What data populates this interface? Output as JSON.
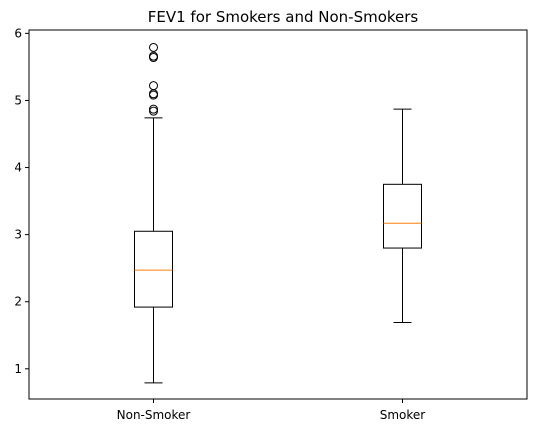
{
  "chart_data": {
    "type": "boxplot",
    "title": "FEV1 for Smokers and Non-Smokers",
    "xlabel": "",
    "ylabel": "",
    "ylim": [
      0.55,
      6.05
    ],
    "yticks": [
      1,
      2,
      3,
      4,
      5,
      6
    ],
    "categories": [
      "Non-Smoker",
      "Smoker"
    ],
    "boxes": [
      {
        "category": "Non-Smoker",
        "whisker_low": 0.79,
        "q1": 1.92,
        "median": 2.47,
        "q3": 3.05,
        "whisker_high": 4.74,
        "outliers": [
          4.84,
          4.87,
          5.08,
          5.1,
          5.22,
          5.64,
          5.66,
          5.79
        ]
      },
      {
        "category": "Smoker",
        "whisker_low": 1.69,
        "q1": 2.8,
        "median": 3.17,
        "q3": 3.75,
        "whisker_high": 4.87,
        "outliers": []
      }
    ],
    "colors": {
      "box": "#000000",
      "median": "#ff7f0e",
      "outlier": "#000000"
    },
    "grid": false,
    "legend": "none"
  }
}
